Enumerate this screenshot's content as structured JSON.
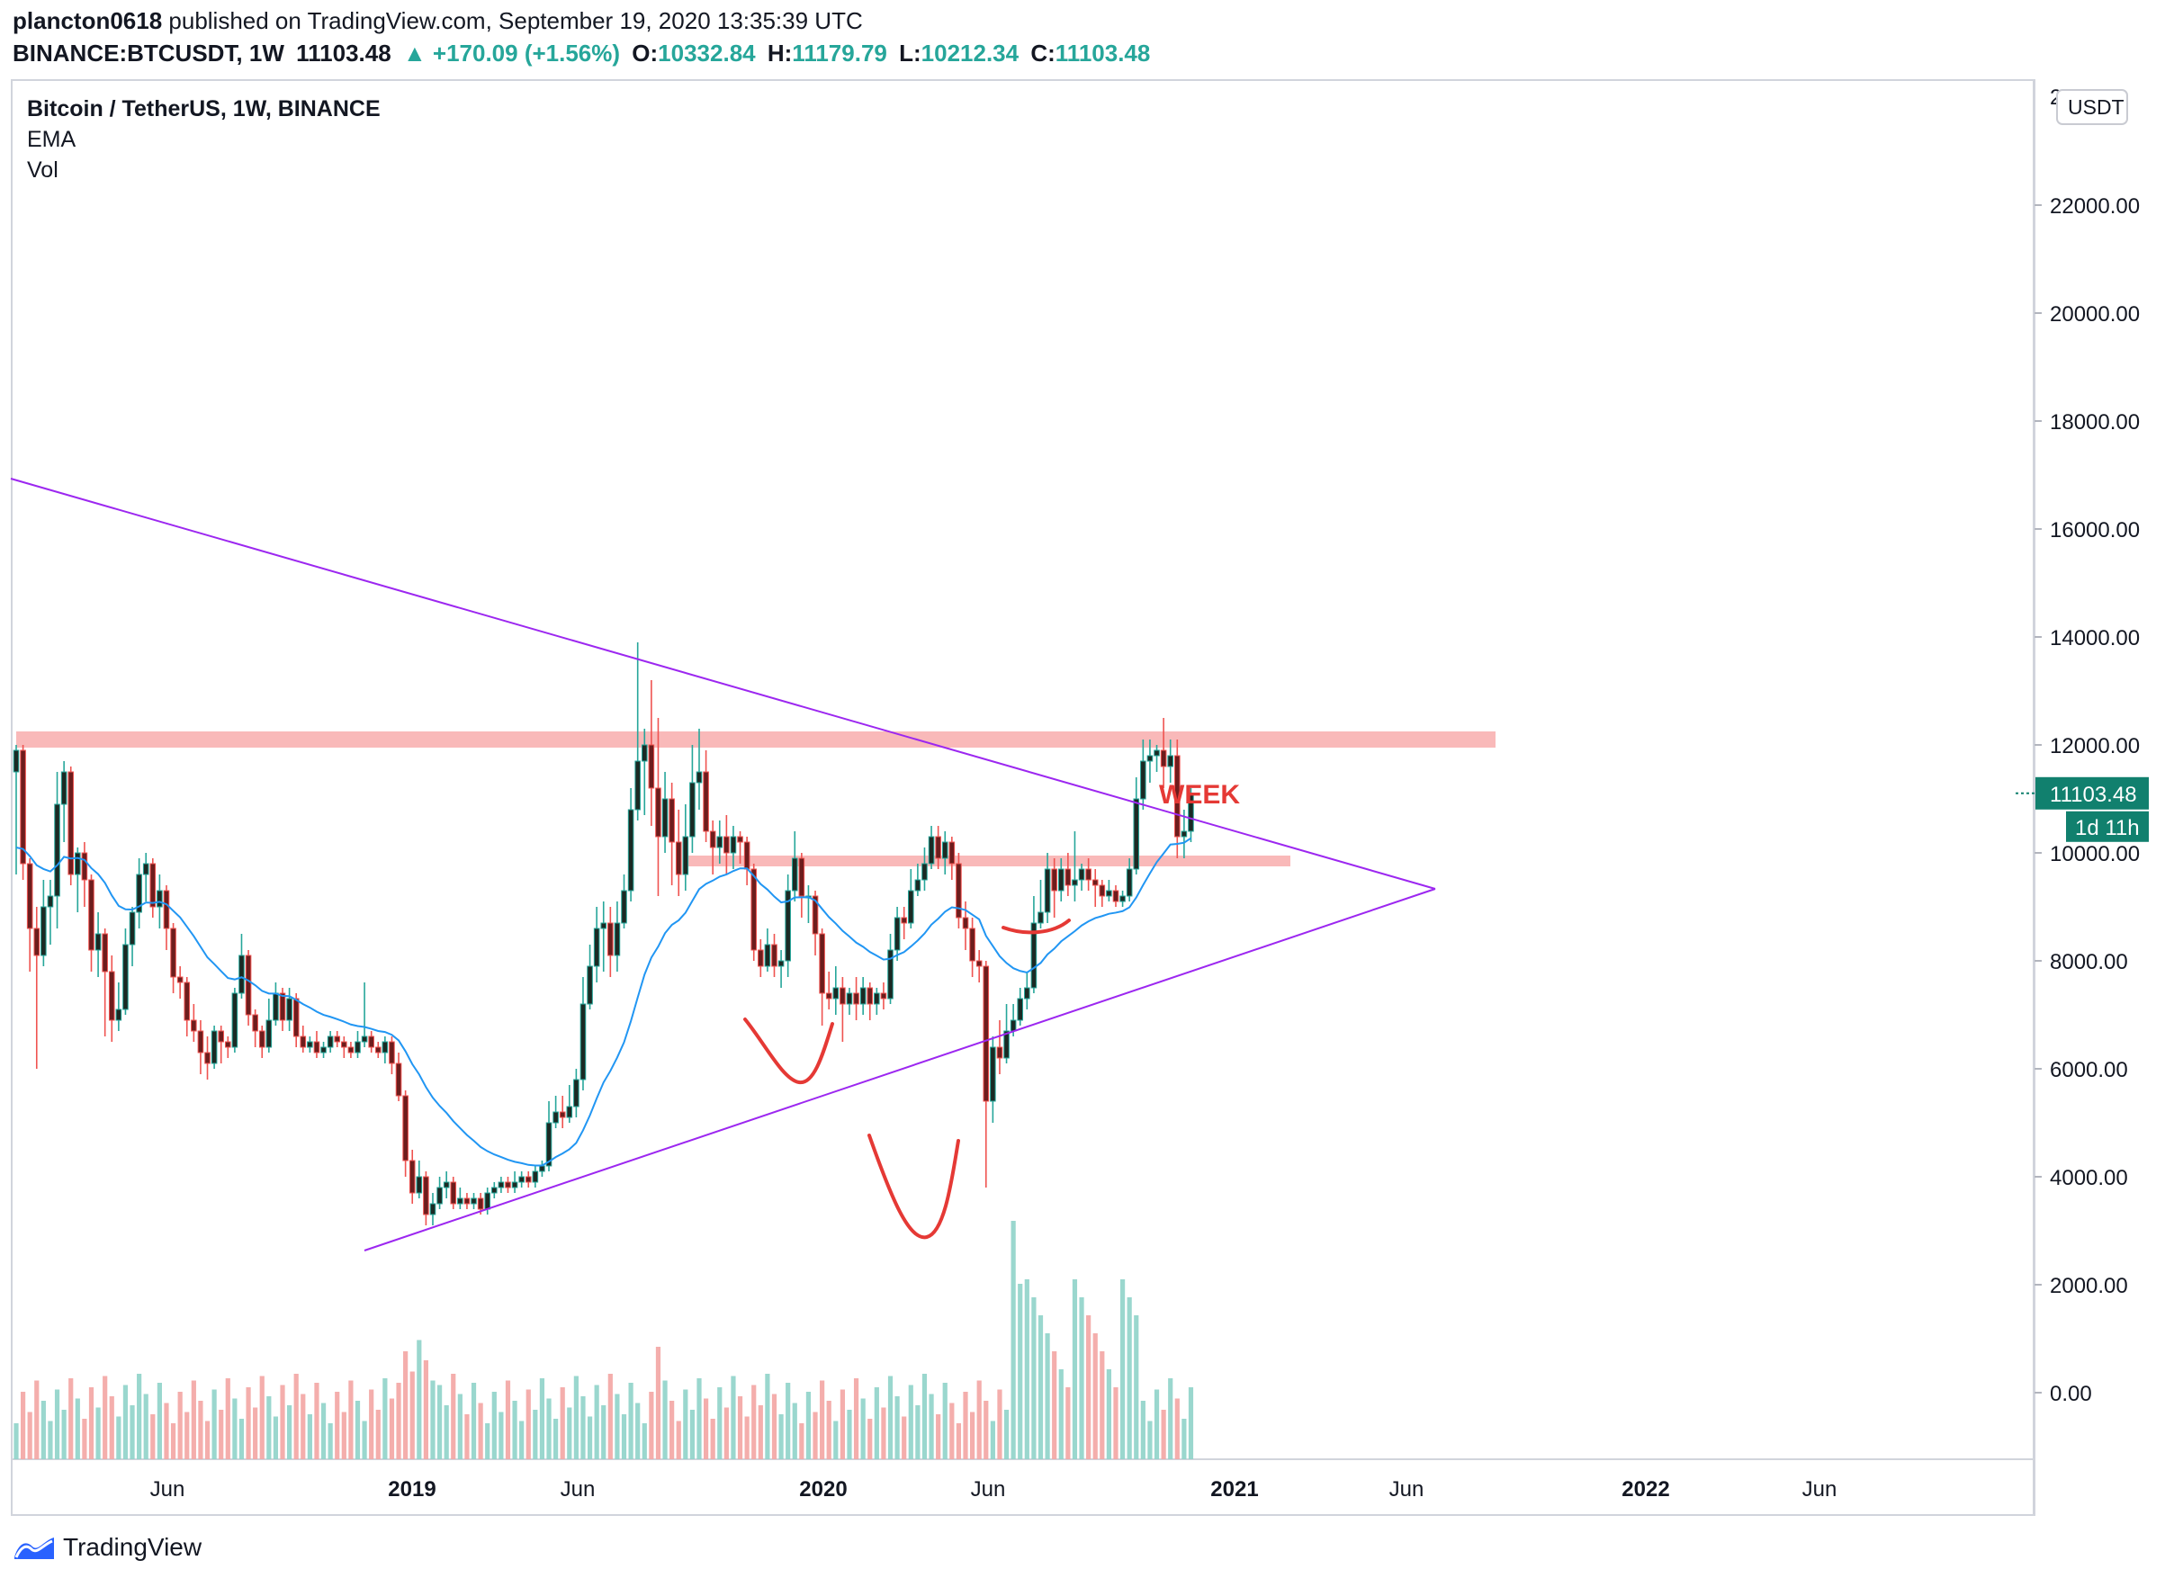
{
  "header": {
    "author": "plancton0618",
    "published_text": " published on TradingView.com, September 19, 2020 13:35:39 UTC",
    "symbol": "BINANCE:BTCUSDT, 1W",
    "last": "11103.48",
    "change": "▲ +170.09 (+1.56%)",
    "o_label": "O:",
    "o_value": "10332.84",
    "h_label": "H:",
    "h_value": "11179.79",
    "l_label": "L:",
    "l_value": "10212.34",
    "c_label": "C:",
    "c_value": "11103.48"
  },
  "legend": {
    "title": "Bitcoin / TetherUS, 1W, BINANCE",
    "ema": "EMA",
    "vol": "Vol"
  },
  "footer": {
    "brand": "TradingView"
  },
  "colors": {
    "up": "#26a69a",
    "down": "#ef5350",
    "body_up": "#1b2a24",
    "body_down": "#6d1d1d",
    "ema": "#2196f3",
    "trend": "#9c27f0",
    "zone": "#f7a8a8",
    "annot": "#e53935",
    "last_bg": "#11806e"
  },
  "chart_data": {
    "type": "candlestick",
    "price_axis": {
      "unit": "USDT",
      "ticks": [
        "22000.00",
        "20000.00",
        "18000.00",
        "16000.00",
        "14000.00",
        "12000.00",
        "10000.00",
        "8000.00",
        "6000.00",
        "4000.00",
        "2000.00",
        "0.00"
      ],
      "top_tick_partial": "2_000"
    },
    "time_axis": [
      "Jun",
      "2019",
      "Jun",
      "2020",
      "Jun",
      "2021",
      "Jun",
      "2022",
      "Jun"
    ],
    "last_price": "11103.48",
    "countdown": "1d 11h",
    "annotation": "WEEK",
    "resistance_zones": [
      [
        11950,
        12250
      ],
      [
        9750,
        9950
      ]
    ],
    "descending_trendline": [
      [
        "2018-03",
        17000
      ],
      [
        "2021-07",
        9400
      ]
    ],
    "ascending_trendline": [
      [
        "2018-12",
        2800
      ],
      [
        "2021-07",
        9400
      ]
    ],
    "candles": [
      [
        11500,
        11900,
        12000,
        9600
      ],
      [
        11900,
        9800,
        12000,
        9500
      ],
      [
        9800,
        8600,
        9900,
        7800
      ],
      [
        8600,
        8100,
        9000,
        6000
      ],
      [
        8100,
        9000,
        9500,
        7900
      ],
      [
        9000,
        9200,
        9500,
        8300
      ],
      [
        9200,
        10900,
        11500,
        8600
      ],
      [
        10900,
        11500,
        11700,
        10200
      ],
      [
        11500,
        9600,
        11600,
        9400
      ],
      [
        9600,
        10000,
        10100,
        8900
      ],
      [
        10000,
        9500,
        10200,
        9000
      ],
      [
        9500,
        8200,
        9600,
        7800
      ],
      [
        8200,
        8500,
        8900,
        7700
      ],
      [
        8500,
        7800,
        8600,
        6600
      ],
      [
        7800,
        6900,
        8100,
        6500
      ],
      [
        6900,
        7100,
        7600,
        6700
      ],
      [
        7100,
        8300,
        8600,
        7000
      ],
      [
        8300,
        8900,
        9000,
        7900
      ],
      [
        8900,
        9600,
        9900,
        8600
      ],
      [
        9600,
        9800,
        10000,
        9100
      ],
      [
        9800,
        9000,
        9900,
        8800
      ],
      [
        9000,
        9300,
        9600,
        8600
      ],
      [
        9300,
        8600,
        9400,
        8200
      ],
      [
        8600,
        7700,
        8700,
        7400
      ],
      [
        7700,
        7600,
        7900,
        7300
      ],
      [
        7600,
        6900,
        7700,
        6600
      ],
      [
        6900,
        6700,
        7200,
        6500
      ],
      [
        6700,
        6300,
        6900,
        5900
      ],
      [
        6300,
        6100,
        6600,
        5800
      ],
      [
        6100,
        6700,
        6800,
        6000
      ],
      [
        6700,
        6500,
        6800,
        6100
      ],
      [
        6500,
        6400,
        6600,
        6200
      ],
      [
        6400,
        7400,
        7500,
        6300
      ],
      [
        7400,
        8100,
        8500,
        7300
      ],
      [
        8100,
        7000,
        8200,
        6800
      ],
      [
        7000,
        6700,
        7100,
        6400
      ],
      [
        6700,
        6400,
        6800,
        6200
      ],
      [
        6400,
        6900,
        7300,
        6300
      ],
      [
        6900,
        7400,
        7600,
        6800
      ],
      [
        7400,
        6900,
        7500,
        6700
      ],
      [
        6900,
        7300,
        7500,
        6700
      ],
      [
        7300,
        6600,
        7400,
        6400
      ],
      [
        6600,
        6400,
        6800,
        6300
      ],
      [
        6400,
        6500,
        6600,
        6300
      ],
      [
        6500,
        6300,
        6700,
        6200
      ],
      [
        6300,
        6400,
        6500,
        6200
      ],
      [
        6400,
        6600,
        6700,
        6300
      ],
      [
        6600,
        6500,
        6700,
        6400
      ],
      [
        6500,
        6400,
        6600,
        6200
      ],
      [
        6400,
        6300,
        6500,
        6200
      ],
      [
        6300,
        6500,
        6700,
        6200
      ],
      [
        6500,
        6600,
        7600,
        6400
      ],
      [
        6600,
        6400,
        6700,
        6300
      ],
      [
        6400,
        6300,
        6500,
        6200
      ],
      [
        6300,
        6500,
        6600,
        6100
      ],
      [
        6500,
        6100,
        6600,
        5900
      ],
      [
        6100,
        5500,
        6300,
        5400
      ],
      [
        5500,
        4300,
        5600,
        4000
      ],
      [
        4300,
        3700,
        4500,
        3500
      ],
      [
        3700,
        4000,
        4300,
        3600
      ],
      [
        4000,
        3300,
        4100,
        3100
      ],
      [
        3300,
        3500,
        3700,
        3100
      ],
      [
        3500,
        3800,
        4000,
        3400
      ],
      [
        3800,
        3900,
        4100,
        3600
      ],
      [
        3900,
        3500,
        4000,
        3400
      ],
      [
        3500,
        3600,
        3800,
        3400
      ],
      [
        3600,
        3500,
        3700,
        3400
      ],
      [
        3500,
        3600,
        3700,
        3400
      ],
      [
        3600,
        3400,
        3700,
        3300
      ],
      [
        3400,
        3700,
        3800,
        3300
      ],
      [
        3700,
        3800,
        3900,
        3600
      ],
      [
        3800,
        3900,
        4000,
        3700
      ],
      [
        3900,
        3800,
        4000,
        3700
      ],
      [
        3800,
        3900,
        4100,
        3700
      ],
      [
        3900,
        4000,
        4100,
        3800
      ],
      [
        4000,
        3900,
        4100,
        3800
      ],
      [
        3900,
        4100,
        4200,
        3800
      ],
      [
        4100,
        4200,
        4300,
        4000
      ],
      [
        4200,
        5000,
        5400,
        4100
      ],
      [
        5000,
        5200,
        5500,
        4900
      ],
      [
        5200,
        5100,
        5500,
        4900
      ],
      [
        5100,
        5300,
        5700,
        5000
      ],
      [
        5300,
        5800,
        6000,
        5100
      ],
      [
        5800,
        7200,
        7700,
        5600
      ],
      [
        7200,
        7900,
        8300,
        7100
      ],
      [
        7900,
        8600,
        9000,
        7600
      ],
      [
        8600,
        8700,
        9100,
        7800
      ],
      [
        8700,
        8100,
        9000,
        7700
      ],
      [
        8100,
        8700,
        9100,
        7800
      ],
      [
        8700,
        9300,
        9600,
        8600
      ],
      [
        9300,
        10800,
        11200,
        9100
      ],
      [
        10800,
        11700,
        13900,
        10600
      ],
      [
        11700,
        12000,
        12300,
        10700
      ],
      [
        12000,
        11200,
        13200,
        10500
      ],
      [
        11200,
        10300,
        12500,
        9200
      ],
      [
        10300,
        11000,
        11500,
        10000
      ],
      [
        11000,
        10200,
        11300,
        9400
      ],
      [
        10200,
        9600,
        10800,
        9200
      ],
      [
        9600,
        10300,
        10900,
        9300
      ],
      [
        10300,
        11300,
        12000,
        10000
      ],
      [
        11300,
        11500,
        12300,
        10800
      ],
      [
        11500,
        10400,
        11900,
        10200
      ],
      [
        10400,
        10100,
        10600,
        9600
      ],
      [
        10100,
        10300,
        10600,
        9800
      ],
      [
        10300,
        10000,
        10700,
        9600
      ],
      [
        10000,
        10300,
        10500,
        9700
      ],
      [
        10300,
        10200,
        10400,
        9800
      ],
      [
        10200,
        9700,
        10300,
        9400
      ],
      [
        9700,
        8200,
        9800,
        8000
      ],
      [
        8200,
        7900,
        8400,
        7700
      ],
      [
        7900,
        8300,
        8600,
        7800
      ],
      [
        8300,
        7900,
        8500,
        7700
      ],
      [
        7900,
        8000,
        8200,
        7500
      ],
      [
        8000,
        9300,
        9600,
        7700
      ],
      [
        9300,
        9900,
        10400,
        9100
      ],
      [
        9900,
        9200,
        10000,
        8800
      ],
      [
        9200,
        9200,
        9400,
        8700
      ],
      [
        9200,
        8500,
        9300,
        8100
      ],
      [
        8500,
        7400,
        8600,
        6800
      ],
      [
        7400,
        7300,
        7800,
        7100
      ],
      [
        7300,
        7500,
        7900,
        7000
      ],
      [
        7500,
        7200,
        7700,
        6500
      ],
      [
        7200,
        7400,
        7500,
        7000
      ],
      [
        7400,
        7200,
        7700,
        6900
      ],
      [
        7200,
        7500,
        7700,
        7000
      ],
      [
        7500,
        7200,
        7600,
        6900
      ],
      [
        7200,
        7400,
        7500,
        7000
      ],
      [
        7400,
        7300,
        7600,
        7100
      ],
      [
        7300,
        8200,
        8500,
        7200
      ],
      [
        8200,
        8800,
        9000,
        8000
      ],
      [
        8800,
        8700,
        9000,
        8400
      ],
      [
        8700,
        9300,
        9700,
        8600
      ],
      [
        9300,
        9500,
        9800,
        9200
      ],
      [
        9500,
        9800,
        10100,
        9300
      ],
      [
        9800,
        10300,
        10500,
        9700
      ],
      [
        10300,
        9900,
        10500,
        9700
      ],
      [
        9900,
        10200,
        10400,
        9600
      ],
      [
        10200,
        9800,
        10300,
        9500
      ],
      [
        9800,
        8800,
        10000,
        8600
      ],
      [
        8800,
        8600,
        9100,
        8200
      ],
      [
        8600,
        8000,
        8800,
        7700
      ],
      [
        8000,
        7900,
        8200,
        7600
      ],
      [
        7900,
        5400,
        8000,
        3800
      ],
      [
        5400,
        6400,
        6600,
        5000
      ],
      [
        6400,
        6200,
        6900,
        5900
      ],
      [
        6200,
        6700,
        7200,
        6100
      ],
      [
        6700,
        6900,
        7200,
        6600
      ],
      [
        6900,
        7300,
        7500,
        6800
      ],
      [
        7300,
        7500,
        7800,
        7100
      ],
      [
        7500,
        8700,
        9200,
        7400
      ],
      [
        8700,
        8900,
        9500,
        8600
      ],
      [
        8900,
        9700,
        10000,
        8700
      ],
      [
        9700,
        9300,
        9900,
        8800
      ],
      [
        9300,
        9700,
        9900,
        9100
      ],
      [
        9700,
        9400,
        10000,
        9200
      ],
      [
        9400,
        9500,
        10400,
        9100
      ],
      [
        9500,
        9700,
        9800,
        9300
      ],
      [
        9700,
        9500,
        9900,
        9300
      ],
      [
        9500,
        9400,
        9700,
        9000
      ],
      [
        9400,
        9200,
        9500,
        9000
      ],
      [
        9200,
        9300,
        9500,
        9100
      ],
      [
        9300,
        9100,
        9400,
        9000
      ],
      [
        9100,
        9200,
        9300,
        9000
      ],
      [
        9200,
        9700,
        9900,
        9100
      ],
      [
        9700,
        11000,
        11400,
        9600
      ],
      [
        11000,
        11700,
        12100,
        10800
      ],
      [
        11700,
        11800,
        12100,
        11300
      ],
      [
        11800,
        11900,
        12000,
        11500
      ],
      [
        11900,
        11600,
        12500,
        11200
      ],
      [
        11600,
        11800,
        12100,
        11300
      ],
      [
        11800,
        10300,
        12100,
        9900
      ],
      [
        10300,
        10400,
        10800,
        9900
      ],
      [
        10400,
        11100,
        11200,
        10200
      ]
    ],
    "volume": [],
    "volume_axis_zero_price": 0
  }
}
